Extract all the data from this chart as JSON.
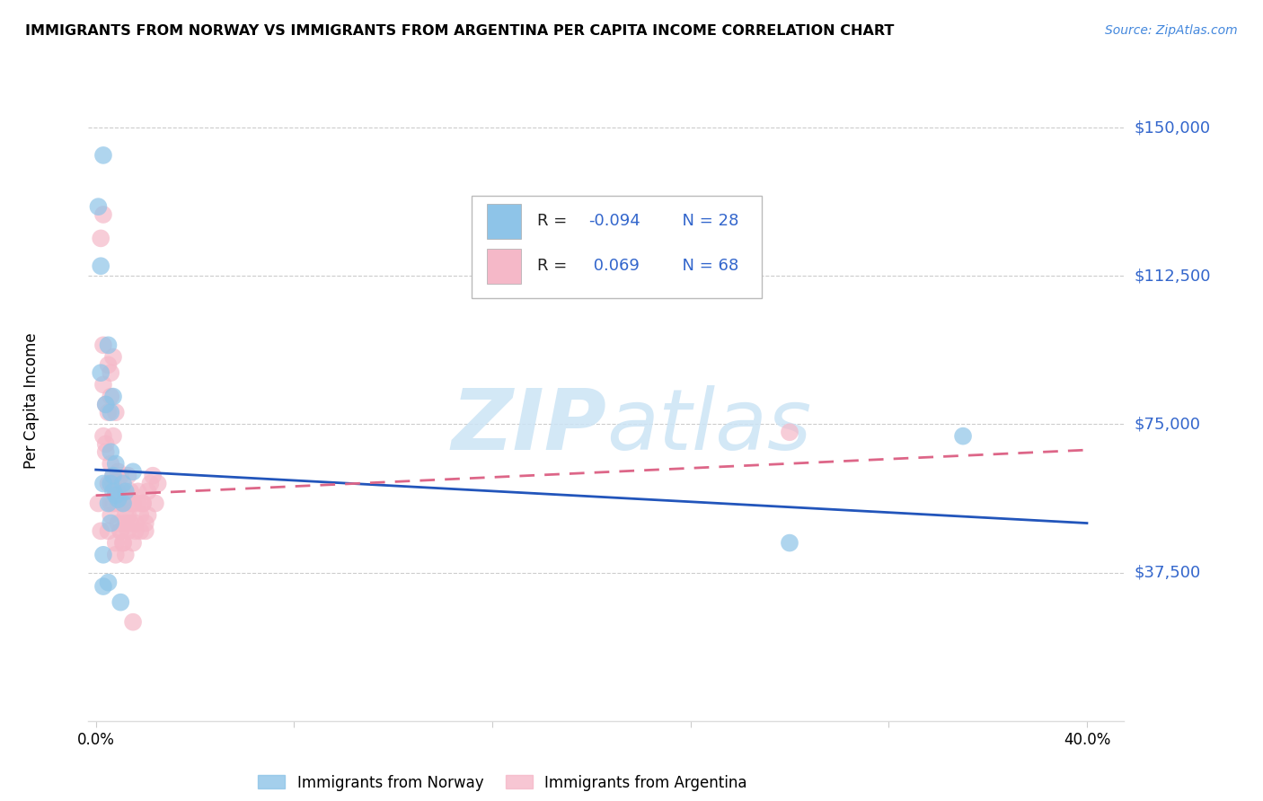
{
  "title": "IMMIGRANTS FROM NORWAY VS IMMIGRANTS FROM ARGENTINA PER CAPITA INCOME CORRELATION CHART",
  "source": "Source: ZipAtlas.com",
  "ylabel": "Per Capita Income",
  "ytick_labels": [
    "$37,500",
    "$75,000",
    "$112,500",
    "$150,000"
  ],
  "ytick_values": [
    37500,
    75000,
    112500,
    150000
  ],
  "ymin": 0,
  "ymax": 162000,
  "xmin": -0.003,
  "xmax": 0.415,
  "norway_R": -0.094,
  "norway_N": 28,
  "argentina_R": 0.069,
  "argentina_N": 68,
  "norway_color": "#8ec4e8",
  "argentina_color": "#f5b8c8",
  "norway_line_color": "#2255bb",
  "argentina_line_color": "#dd6688",
  "watermark_color": "#cce4f5",
  "norway_line_x": [
    0.0,
    0.4
  ],
  "norway_line_y": [
    63500,
    50000
  ],
  "argentina_line_x": [
    0.0,
    0.4
  ],
  "argentina_line_y": [
    57000,
    68500
  ],
  "norway_points_x": [
    0.003,
    0.001,
    0.005,
    0.004,
    0.002,
    0.006,
    0.007,
    0.006,
    0.006,
    0.008,
    0.008,
    0.007,
    0.003,
    0.011,
    0.011,
    0.012,
    0.005,
    0.003,
    0.009,
    0.01,
    0.006,
    0.015,
    0.003,
    0.007,
    0.35,
    0.28,
    0.005,
    0.002
  ],
  "norway_points_y": [
    143000,
    130000,
    95000,
    80000,
    115000,
    78000,
    82000,
    68000,
    60000,
    65000,
    57000,
    62000,
    42000,
    60000,
    55000,
    58000,
    35000,
    34000,
    56000,
    30000,
    50000,
    63000,
    60000,
    58000,
    72000,
    45000,
    55000,
    88000
  ],
  "argentina_points_x": [
    0.001,
    0.002,
    0.003,
    0.002,
    0.003,
    0.004,
    0.005,
    0.006,
    0.004,
    0.005,
    0.006,
    0.007,
    0.003,
    0.004,
    0.005,
    0.006,
    0.007,
    0.008,
    0.009,
    0.007,
    0.006,
    0.005,
    0.008,
    0.009,
    0.01,
    0.008,
    0.007,
    0.01,
    0.011,
    0.012,
    0.01,
    0.009,
    0.011,
    0.012,
    0.013,
    0.014,
    0.013,
    0.011,
    0.012,
    0.014,
    0.015,
    0.013,
    0.016,
    0.015,
    0.014,
    0.017,
    0.016,
    0.018,
    0.017,
    0.019,
    0.018,
    0.02,
    0.019,
    0.021,
    0.02,
    0.022,
    0.021,
    0.024,
    0.023,
    0.025,
    0.015,
    0.28,
    0.003,
    0.008,
    0.006,
    0.007,
    0.009,
    0.01
  ],
  "argentina_points_y": [
    55000,
    48000,
    128000,
    122000,
    72000,
    70000,
    90000,
    88000,
    80000,
    78000,
    82000,
    72000,
    85000,
    68000,
    60000,
    55000,
    92000,
    58000,
    63000,
    60000,
    52000,
    48000,
    45000,
    50000,
    62000,
    42000,
    55000,
    48000,
    45000,
    52000,
    48000,
    55000,
    58000,
    50000,
    62000,
    55000,
    48000,
    45000,
    42000,
    50000,
    55000,
    52000,
    48000,
    45000,
    58000,
    55000,
    50000,
    48000,
    58000,
    55000,
    52000,
    50000,
    55000,
    52000,
    48000,
    60000,
    58000,
    55000,
    62000,
    60000,
    25000,
    73000,
    95000,
    78000,
    65000,
    62000,
    58000,
    55000
  ]
}
